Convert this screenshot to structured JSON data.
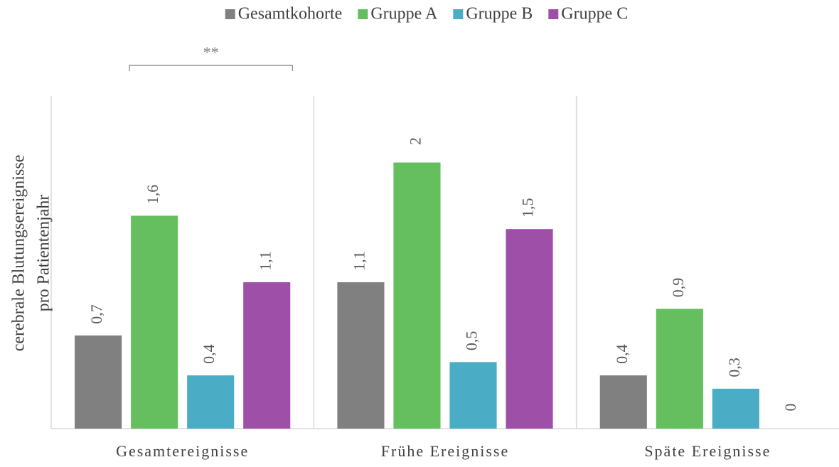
{
  "chart_data": {
    "type": "bar",
    "y_label": [
      "cerebrale Blutungsereignisse",
      "pro Patientenjahr"
    ],
    "annotation": "**",
    "categories": [
      "Gesamtereignisse",
      "Frühe Ereignisse",
      "Späte Ereignisse"
    ],
    "series": [
      {
        "name": "Gesamtkohorte",
        "color": "#808080",
        "values": [
          0.7,
          1.1,
          0.4
        ],
        "value_labels": [
          "0,7",
          "1,1",
          "0,4"
        ]
      },
      {
        "name": "Gruppe A",
        "color": "#66bf5f",
        "values": [
          1.6,
          2,
          0.9
        ],
        "value_labels": [
          "1,6",
          "2",
          "0,9"
        ]
      },
      {
        "name": "Gruppe B",
        "color": "#4bacc6",
        "values": [
          0.4,
          0.5,
          0.3
        ],
        "value_labels": [
          "0,4",
          "0,5",
          "0,3"
        ]
      },
      {
        "name": "Gruppe C",
        "color": "#9e4fa8",
        "values": [
          1.1,
          1.5,
          0
        ],
        "value_labels": [
          "1,1",
          "1,5",
          "0"
        ]
      }
    ],
    "ylim": [
      0,
      2.5
    ],
    "legend": "top"
  }
}
